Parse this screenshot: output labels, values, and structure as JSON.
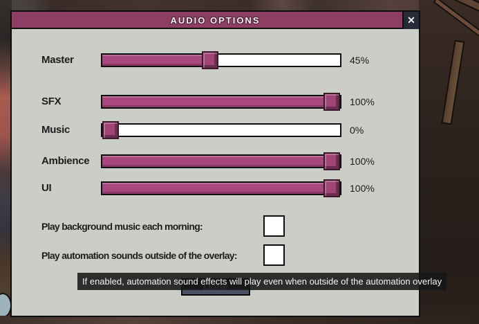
{
  "window": {
    "title": "AUDIO OPTIONS",
    "close_glyph": "✕"
  },
  "sliders": [
    {
      "label": "Master",
      "pct": 45,
      "value_text": "45%"
    },
    {
      "label": "SFX",
      "pct": 100,
      "value_text": "100%"
    },
    {
      "label": "Music",
      "pct": 0,
      "value_text": "0%"
    },
    {
      "label": "Ambience",
      "pct": 100,
      "value_text": "100%"
    },
    {
      "label": "UI",
      "pct": 100,
      "value_text": "100%"
    }
  ],
  "checkboxes": [
    {
      "label": "Play background music each morning:",
      "checked": false
    },
    {
      "label": "Play automation sounds outside of the overlay:",
      "checked": false
    }
  ],
  "done_button": {
    "label": "Done"
  },
  "tooltip": {
    "text": "If enabled, automation sound effects will play even when outside of the automation overlay"
  },
  "colors": {
    "titlebar": "#8e3e63",
    "slider_fill": "#a8487c",
    "panel_bg": "#cbcdc7",
    "close_button_bg": "#262b3a",
    "tooltip_bg": "#171717",
    "done_button_bg": "#191d26",
    "border": "#0e0e0e"
  }
}
